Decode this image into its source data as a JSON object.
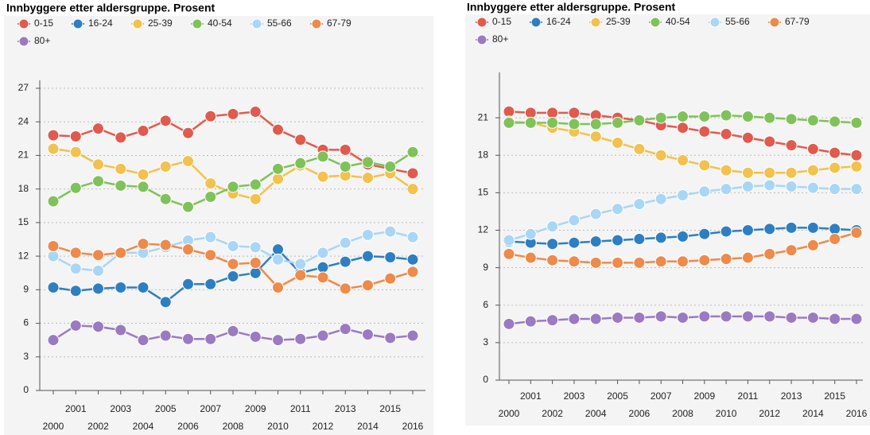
{
  "chart_data": [
    {
      "type": "line",
      "title": "Innbyggere etter aldersgruppe. Prosent",
      "categories": [
        "2000",
        "2001",
        "2002",
        "2003",
        "2004",
        "2005",
        "2006",
        "2007",
        "2008",
        "2009",
        "2010",
        "2011",
        "2012",
        "2013",
        "2014",
        "2015",
        "2016"
      ],
      "ylim": [
        0,
        27
      ],
      "yticks": [
        0,
        3,
        6,
        9,
        12,
        15,
        18,
        21,
        24,
        27
      ],
      "grid": true,
      "legend": "top",
      "series": [
        {
          "name": "0-15",
          "color": "#e05a4e",
          "values": [
            22.8,
            22.7,
            23.4,
            22.6,
            23.2,
            24.1,
            23.0,
            24.5,
            24.7,
            24.9,
            23.3,
            22.4,
            21.5,
            21.5,
            20.2,
            19.8,
            19.4
          ]
        },
        {
          "name": "16-24",
          "color": "#2e7fc1",
          "values": [
            9.2,
            8.9,
            9.1,
            9.2,
            9.2,
            7.9,
            9.5,
            9.5,
            10.2,
            10.5,
            12.6,
            10.5,
            11.0,
            11.5,
            12.0,
            11.9,
            11.7
          ]
        },
        {
          "name": "25-39",
          "color": "#f2c14e",
          "values": [
            21.6,
            21.3,
            20.2,
            19.8,
            19.3,
            20.0,
            20.5,
            18.5,
            17.6,
            17.1,
            18.9,
            20.1,
            19.1,
            19.2,
            19.0,
            19.4,
            18.0
          ]
        },
        {
          "name": "40-54",
          "color": "#7fc25a",
          "values": [
            16.9,
            18.1,
            18.7,
            18.3,
            18.2,
            17.1,
            16.4,
            17.3,
            18.2,
            18.4,
            19.8,
            20.3,
            20.9,
            20.0,
            20.4,
            20.0,
            21.3
          ]
        },
        {
          "name": "55-66",
          "color": "#a9d6f5",
          "values": [
            12.0,
            10.9,
            10.7,
            12.3,
            12.3,
            12.8,
            13.4,
            13.7,
            12.9,
            12.8,
            11.7,
            11.3,
            12.3,
            13.2,
            13.9,
            14.2,
            13.7
          ]
        },
        {
          "name": "67-79",
          "color": "#ee8a4a",
          "values": [
            12.9,
            12.3,
            12.1,
            12.3,
            13.1,
            13.0,
            12.6,
            12.1,
            11.3,
            11.4,
            9.2,
            10.3,
            10.1,
            9.1,
            9.4,
            10.0,
            10.6
          ]
        },
        {
          "name": "80+",
          "color": "#9b7ac2",
          "values": [
            4.5,
            5.8,
            5.7,
            5.4,
            4.5,
            4.9,
            4.6,
            4.6,
            5.3,
            4.8,
            4.5,
            4.6,
            4.9,
            5.5,
            5.0,
            4.7,
            4.9
          ]
        }
      ]
    },
    {
      "type": "line",
      "title": "Innbyggere etter aldersgruppe. Prosent",
      "categories": [
        "2000",
        "2001",
        "2002",
        "2003",
        "2004",
        "2005",
        "2006",
        "2007",
        "2008",
        "2009",
        "2010",
        "2011",
        "2012",
        "2013",
        "2014",
        "2015",
        "2016"
      ],
      "ylim": [
        0,
        24
      ],
      "yticks": [
        0,
        3,
        6,
        9,
        12,
        15,
        18,
        21
      ],
      "grid": true,
      "legend": "top",
      "series": [
        {
          "name": "0-15",
          "color": "#e05a4e",
          "values": [
            21.5,
            21.4,
            21.4,
            21.4,
            21.2,
            21.0,
            20.8,
            20.4,
            20.2,
            19.9,
            19.7,
            19.4,
            19.1,
            18.8,
            18.5,
            18.2,
            18.0
          ]
        },
        {
          "name": "16-24",
          "color": "#2e7fc1",
          "values": [
            11.1,
            11.0,
            10.9,
            11.0,
            11.1,
            11.2,
            11.3,
            11.4,
            11.5,
            11.7,
            11.9,
            12.0,
            12.1,
            12.2,
            12.2,
            12.1,
            12.0
          ]
        },
        {
          "name": "25-39",
          "color": "#f2c14e",
          "values": [
            20.7,
            20.6,
            20.2,
            19.9,
            19.5,
            19.0,
            18.5,
            18.0,
            17.6,
            17.2,
            16.8,
            16.6,
            16.6,
            16.6,
            16.8,
            17.0,
            17.1
          ]
        },
        {
          "name": "40-54",
          "color": "#7fc25a",
          "values": [
            20.6,
            20.6,
            20.6,
            20.5,
            20.5,
            20.6,
            20.8,
            21.0,
            21.1,
            21.1,
            21.2,
            21.1,
            21.0,
            20.9,
            20.8,
            20.7,
            20.6
          ]
        },
        {
          "name": "55-66",
          "color": "#a9d6f5",
          "values": [
            11.2,
            11.7,
            12.3,
            12.8,
            13.3,
            13.7,
            14.1,
            14.5,
            14.8,
            15.1,
            15.3,
            15.5,
            15.6,
            15.5,
            15.4,
            15.3,
            15.3
          ]
        },
        {
          "name": "67-79",
          "color": "#ee8a4a",
          "values": [
            10.1,
            9.8,
            9.6,
            9.5,
            9.4,
            9.4,
            9.4,
            9.5,
            9.5,
            9.6,
            9.7,
            9.8,
            10.1,
            10.4,
            10.8,
            11.3,
            11.8
          ]
        },
        {
          "name": "80+",
          "color": "#9b7ac2",
          "values": [
            4.5,
            4.7,
            4.8,
            4.9,
            4.9,
            5.0,
            5.0,
            5.1,
            5.0,
            5.1,
            5.1,
            5.1,
            5.1,
            5.0,
            5.0,
            4.9,
            4.9
          ]
        }
      ]
    }
  ]
}
